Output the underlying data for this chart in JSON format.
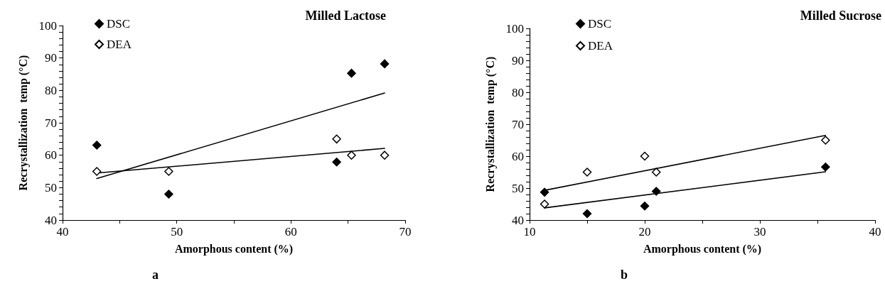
{
  "chart_data": [
    {
      "type": "scatter",
      "title": "Milled Lactose",
      "xlabel": "Amorphous content (%)",
      "ylabel": "Recrystallization  temp (°C)",
      "annotations": [
        "a"
      ],
      "legend": "top left",
      "marker": "diamond",
      "grid": false,
      "xlim": [
        40,
        70
      ],
      "xticks": [
        40,
        {
          "value": 45,
          "label": null
        },
        50,
        {
          "value": 55,
          "label": null
        },
        60,
        {
          "value": 65,
          "label": null
        },
        70
      ],
      "ylim": [
        40,
        100
      ],
      "yticks": [
        40,
        {
          "value": 42,
          "label": null
        },
        {
          "value": 44,
          "label": null
        },
        {
          "value": 46,
          "label": null
        },
        {
          "value": 48,
          "label": null
        },
        50,
        {
          "value": 52,
          "label": null
        },
        {
          "value": 54,
          "label": null
        },
        {
          "value": 56,
          "label": null
        },
        {
          "value": 58,
          "label": null
        },
        60,
        {
          "value": 62,
          "label": null
        },
        {
          "value": 64,
          "label": null
        },
        {
          "value": 66,
          "label": null
        },
        {
          "value": 68,
          "label": null
        },
        70,
        {
          "value": 72,
          "label": null
        },
        {
          "value": 74,
          "label": null
        },
        {
          "value": 76,
          "label": null
        },
        {
          "value": 78,
          "label": null
        },
        80,
        {
          "value": 82,
          "label": null
        },
        {
          "value": 84,
          "label": null
        },
        {
          "value": 86,
          "label": null
        },
        {
          "value": 88,
          "label": null
        },
        90,
        {
          "value": 92,
          "label": null
        },
        {
          "value": 94,
          "label": null
        },
        {
          "value": 96,
          "label": null
        },
        {
          "value": 98,
          "label": null
        },
        100
      ],
      "series": [
        {
          "name": "DSC",
          "color": "#000000",
          "x": [
            43,
            49.3,
            64,
            65.3,
            68.2
          ],
          "values": [
            63.1,
            48,
            57.9,
            85.3,
            88.2
          ]
        },
        {
          "name": "DEA",
          "color": "#ffffff",
          "x": [
            43,
            49.3,
            64,
            65.3,
            68.2
          ],
          "values": [
            55,
            55,
            65,
            60,
            60
          ]
        },
        {
          "type": "line",
          "marker": "none",
          "color": "#000000",
          "line_style": "solid",
          "x": [
            43,
            68.2
          ],
          "values": [
            52.8,
            79.2
          ]
        },
        {
          "type": "line",
          "marker": "none",
          "color": "#000000",
          "line_style": "solid",
          "x": [
            43,
            68.2
          ],
          "values": [
            54.5,
            62.1
          ]
        }
      ]
    },
    {
      "type": "scatter",
      "title": "Milled Sucrose",
      "xlabel": "Amorphous content (%)",
      "ylabel": "Recrystallization  temp (°C)",
      "annotations": [
        "b"
      ],
      "legend": "top left",
      "marker": "diamond",
      "grid": false,
      "xlim": [
        10,
        40
      ],
      "xticks": [
        10,
        {
          "value": 15,
          "label": null
        },
        20,
        {
          "value": 25,
          "label": null
        },
        30,
        {
          "value": 35,
          "label": null
        },
        40
      ],
      "ylim": [
        40,
        100
      ],
      "yticks": [
        40,
        {
          "value": 42,
          "label": null
        },
        {
          "value": 44,
          "label": null
        },
        {
          "value": 46,
          "label": null
        },
        {
          "value": 48,
          "label": null
        },
        50,
        {
          "value": 52,
          "label": null
        },
        {
          "value": 54,
          "label": null
        },
        {
          "value": 56,
          "label": null
        },
        {
          "value": 58,
          "label": null
        },
        60,
        {
          "value": 62,
          "label": null
        },
        {
          "value": 64,
          "label": null
        },
        {
          "value": 66,
          "label": null
        },
        {
          "value": 68,
          "label": null
        },
        70,
        {
          "value": 72,
          "label": null
        },
        {
          "value": 74,
          "label": null
        },
        {
          "value": 76,
          "label": null
        },
        {
          "value": 78,
          "label": null
        },
        80,
        {
          "value": 82,
          "label": null
        },
        {
          "value": 84,
          "label": null
        },
        {
          "value": 86,
          "label": null
        },
        {
          "value": 88,
          "label": null
        },
        90,
        {
          "value": 92,
          "label": null
        },
        {
          "value": 94,
          "label": null
        },
        {
          "value": 96,
          "label": null
        },
        {
          "value": 98,
          "label": null
        },
        100
      ],
      "series": [
        {
          "name": "DSC",
          "color": "#000000",
          "x": [
            11.3,
            15,
            20,
            21,
            35.7
          ],
          "values": [
            48.7,
            42,
            44.4,
            49,
            56.6
          ]
        },
        {
          "name": "DEA",
          "color": "#ffffff",
          "x": [
            11.3,
            15,
            20,
            21,
            35.7
          ],
          "values": [
            45,
            55,
            60,
            55,
            65
          ]
        },
        {
          "type": "line",
          "marker": "none",
          "color": "#000000",
          "line_style": "solid",
          "x": [
            11.3,
            35.7
          ],
          "values": [
            49.3,
            66.5
          ]
        },
        {
          "type": "line",
          "marker": "none",
          "color": "#000000",
          "line_style": "solid",
          "x": [
            11.3,
            35.7
          ],
          "values": [
            43.8,
            55.1
          ]
        }
      ]
    }
  ]
}
